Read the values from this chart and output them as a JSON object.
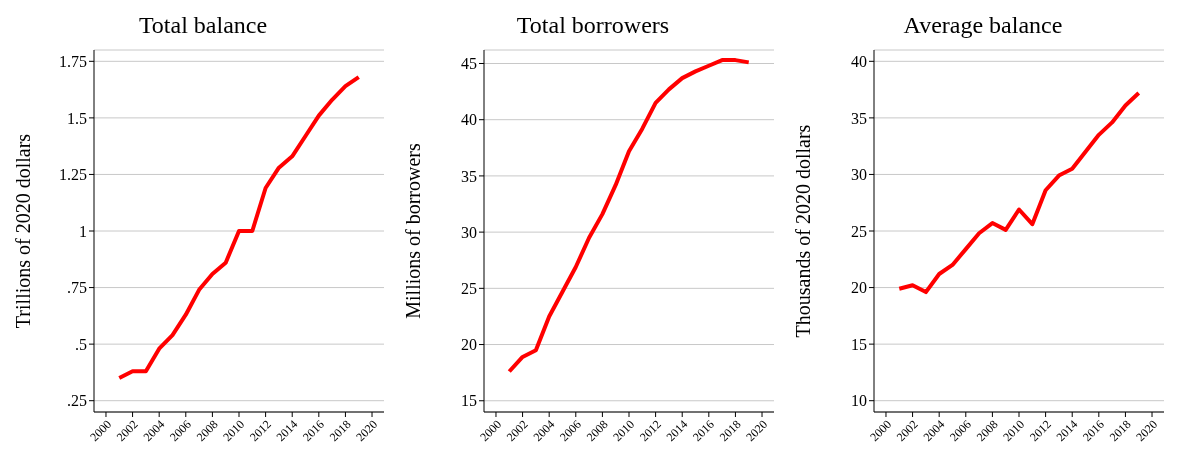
{
  "chart_data": [
    {
      "type": "line",
      "title": "Total balance",
      "ylabel": "Trillions of 2020 dollars",
      "x": [
        2001,
        2002,
        2003,
        2004,
        2005,
        2006,
        2007,
        2008,
        2009,
        2010,
        2011,
        2012,
        2013,
        2014,
        2015,
        2016,
        2017,
        2018,
        2019
      ],
      "values": [
        0.35,
        0.38,
        0.38,
        0.48,
        0.54,
        0.63,
        0.74,
        0.81,
        0.86,
        1.0,
        1.0,
        1.19,
        1.28,
        1.33,
        1.42,
        1.51,
        1.58,
        1.64,
        1.68
      ],
      "color": "#ff0000",
      "xlim": [
        1999.1,
        2020.9
      ],
      "xticks": [
        2000,
        2002,
        2004,
        2006,
        2008,
        2010,
        2012,
        2014,
        2016,
        2018,
        2020
      ],
      "ylim": [
        0.2,
        1.8
      ],
      "yticks": [
        {
          "value": 0.25,
          "label": ".25"
        },
        {
          "value": 0.5,
          "label": ".5"
        },
        {
          "value": 0.75,
          "label": ".75"
        },
        1,
        1.25,
        1.5,
        1.75
      ],
      "grid": "y"
    },
    {
      "type": "line",
      "title": "Total borrowers",
      "ylabel": "Millions of borrowers",
      "x": [
        2001,
        2002,
        2003,
        2004,
        2005,
        2006,
        2007,
        2008,
        2009,
        2010,
        2011,
        2012,
        2013,
        2014,
        2015,
        2016,
        2017,
        2018,
        2019
      ],
      "values": [
        17.6,
        18.9,
        19.5,
        22.5,
        24.7,
        26.9,
        29.5,
        31.6,
        34.2,
        37.2,
        39.2,
        41.5,
        42.7,
        43.7,
        44.3,
        44.8,
        45.3,
        45.3,
        45.1
      ],
      "color": "#ff0000",
      "xlim": [
        1999.1,
        2020.9
      ],
      "xticks": [
        2000,
        2002,
        2004,
        2006,
        2008,
        2010,
        2012,
        2014,
        2016,
        2018,
        2020
      ],
      "ylim": [
        14,
        46.2
      ],
      "yticks": [
        15,
        20,
        25,
        30,
        35,
        40,
        45
      ],
      "grid": "y"
    },
    {
      "type": "line",
      "title": "Average balance",
      "ylabel": "Thousands of 2020 dollars",
      "x": [
        2001,
        2002,
        2003,
        2004,
        2005,
        2006,
        2007,
        2008,
        2009,
        2010,
        2011,
        2012,
        2013,
        2014,
        2015,
        2016,
        2017,
        2018,
        2019
      ],
      "values": [
        19.9,
        20.2,
        19.6,
        21.2,
        22.0,
        23.4,
        24.8,
        25.7,
        25.1,
        26.9,
        25.6,
        28.6,
        29.9,
        30.5,
        32.0,
        33.5,
        34.6,
        36.1,
        37.2
      ],
      "color": "#ff0000",
      "xlim": [
        1999.1,
        2020.9
      ],
      "xticks": [
        2000,
        2002,
        2004,
        2006,
        2008,
        2010,
        2012,
        2014,
        2016,
        2018,
        2020
      ],
      "ylim": [
        9,
        41
      ],
      "yticks": [
        10,
        15,
        20,
        25,
        30,
        35,
        40
      ],
      "grid": "y"
    }
  ]
}
